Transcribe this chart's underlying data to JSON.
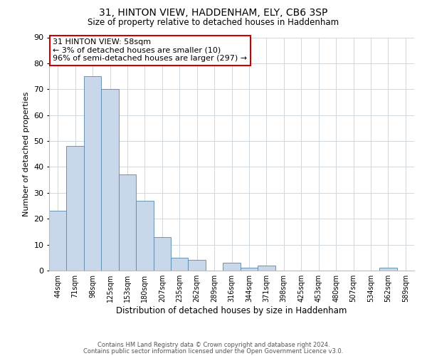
{
  "title1": "31, HINTON VIEW, HADDENHAM, ELY, CB6 3SP",
  "title2": "Size of property relative to detached houses in Haddenham",
  "xlabel": "Distribution of detached houses by size in Haddenham",
  "ylabel": "Number of detached properties",
  "footer1": "Contains HM Land Registry data © Crown copyright and database right 2024.",
  "footer2": "Contains public sector information licensed under the Open Government Licence v3.0.",
  "annotation_title": "31 HINTON VIEW: 58sqm",
  "annotation_line2": "← 3% of detached houses are smaller (10)",
  "annotation_line3": "96% of semi-detached houses are larger (297) →",
  "bar_labels": [
    "44sqm",
    "71sqm",
    "98sqm",
    "125sqm",
    "153sqm",
    "180sqm",
    "207sqm",
    "235sqm",
    "262sqm",
    "289sqm",
    "316sqm",
    "344sqm",
    "371sqm",
    "398sqm",
    "425sqm",
    "453sqm",
    "480sqm",
    "507sqm",
    "534sqm",
    "562sqm",
    "589sqm"
  ],
  "bar_values": [
    23,
    48,
    75,
    70,
    37,
    27,
    13,
    5,
    4,
    0,
    3,
    1,
    2,
    0,
    0,
    0,
    0,
    0,
    0,
    1,
    0
  ],
  "bar_color": "#c8d8ea",
  "bar_edge_color": "#5588aa",
  "annotation_box_color": "#ffffff",
  "annotation_box_edge": "#cc0000",
  "ylim": [
    0,
    90
  ],
  "yticks": [
    0,
    10,
    20,
    30,
    40,
    50,
    60,
    70,
    80,
    90
  ],
  "background_color": "#ffffff",
  "grid_color": "#d0d8e0"
}
